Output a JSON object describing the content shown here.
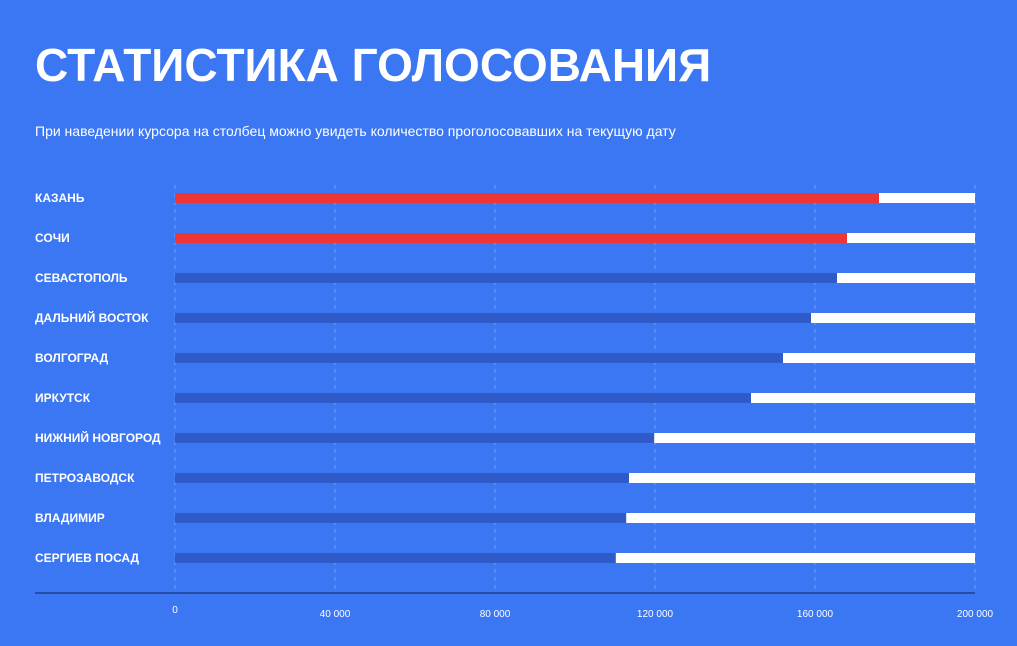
{
  "header": {
    "title": "СТАТИСТИКА ГОЛОСОВАНИЯ",
    "subtitle": "При наведении курсора на столбец можно увидеть количество проголосовавших на текущую дату"
  },
  "colors": {
    "background": "#3b76f3",
    "highlight": "#ef3535",
    "bar": "#2f5bc8",
    "remainder": "#ffffff"
  },
  "chart_data": {
    "type": "bar",
    "orientation": "horizontal",
    "title": "СТАТИСТИКА ГОЛОСОВАНИЯ",
    "categories": [
      "КАЗАНЬ",
      "СОЧИ",
      "СЕВАСТОПОЛЬ",
      "ДАЛЬНИЙ ВОСТОК",
      "ВОЛГОГРАД",
      "ИРКУТСК",
      "НИЖНИЙ НОВГОРОД",
      "ПЕТРОЗАВОДСК",
      "ВЛАДИМИР",
      "СЕРГИЕВ ПОСАД"
    ],
    "values": [
      176000,
      168000,
      165500,
      159000,
      152000,
      144000,
      119800,
      113500,
      112800,
      110200
    ],
    "highlighted": [
      true,
      true,
      false,
      false,
      false,
      false,
      false,
      false,
      false,
      false
    ],
    "xlim": [
      0,
      200000
    ],
    "xticks": [
      0,
      40000,
      80000,
      120000,
      160000,
      200000
    ],
    "xtick_labels": [
      "0",
      "40 000",
      "80 000",
      "120 000",
      "160 000",
      "200 000"
    ],
    "grid": true
  }
}
